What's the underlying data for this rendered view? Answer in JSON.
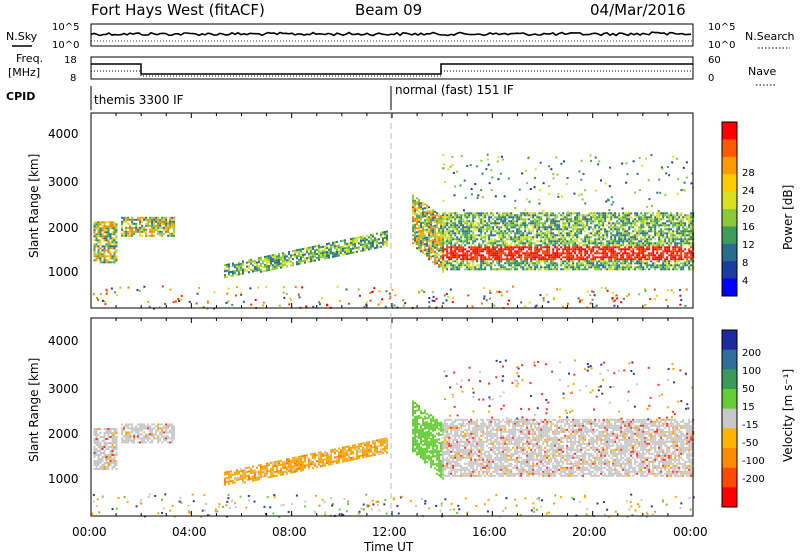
{
  "header": {
    "title": "Fort Hays West (fitACF)",
    "beam": "Beam 09",
    "date": "04/Mar/2016"
  },
  "noise_panel": {
    "left_label": "N.Sky",
    "left_ticks": [
      "10^5",
      "10^0"
    ],
    "right_label": "N.Search",
    "right_ticks": [
      "10^5",
      "10^0"
    ]
  },
  "freq_panel": {
    "left_label_line1": "Freq.",
    "left_label_line2": "[MHz]",
    "left_ticks": [
      "18",
      "8"
    ],
    "right_label": "Nave",
    "right_ticks": [
      "60",
      "0"
    ]
  },
  "cpid": {
    "label": "CPID",
    "segments": [
      {
        "text": "themis 3300 IF",
        "start_hour": 0
      },
      {
        "text": "normal (fast) 151 IF",
        "start_hour": 12
      }
    ]
  },
  "colorbars": {
    "power": {
      "title": "Power [dB]",
      "ticks": [
        "28",
        "24",
        "20",
        "16",
        "12",
        "8",
        "4"
      ],
      "colors": [
        "#ff0000",
        "#ff5a00",
        "#ff9a00",
        "#ffcc00",
        "#d8e020",
        "#8cc83c",
        "#3c9c5a",
        "#2a6c8c",
        "#1c3ca0",
        "#0000ff"
      ]
    },
    "velocity": {
      "title": "Velocity [m s⁻¹]",
      "ticks": [
        "200",
        "100",
        "50",
        "15",
        "-15",
        "-50",
        "-100",
        "-200"
      ],
      "colors": [
        "#1e2aa0",
        "#2e6e9c",
        "#3a9a5a",
        "#66cc33",
        "#c8c8c8",
        "#ffb400",
        "#ff8c00",
        "#ff4a00",
        "#ff0000"
      ]
    }
  },
  "chart_data": [
    {
      "type": "heatmap",
      "panel": "power",
      "ylabel": "Slant Range [km]",
      "yticks": [
        "4000",
        "3000",
        "2000",
        "1000"
      ],
      "ylim": [
        180,
        4500
      ],
      "xlim": [
        0,
        24
      ],
      "echo_regions": [
        {
          "x_start": 0.1,
          "x_end": 1.0,
          "range_low": 1200,
          "range_high": 2100
        },
        {
          "x_start": 1.2,
          "x_end": 3.3,
          "range_low": 1800,
          "range_high": 2200
        },
        {
          "x_start": 5.3,
          "x_end": 11.8,
          "range_low": 850,
          "range_high": 1900
        },
        {
          "x_start": 12.8,
          "x_end": 14.0,
          "range_low": 1000,
          "range_high": 2700
        },
        {
          "x_start": 14.0,
          "x_end": 24.0,
          "range_low": 1050,
          "range_high": 2300
        }
      ]
    },
    {
      "type": "heatmap",
      "panel": "velocity",
      "ylabel": "Slant Range [km]",
      "yticks": [
        "4000",
        "3000",
        "2000",
        "1000"
      ],
      "ylim": [
        180,
        4500
      ],
      "xlim": [
        0,
        24
      ],
      "xlabel": "Time UT",
      "xticks": [
        "00:00",
        "04:00",
        "08:00",
        "12:00",
        "16:00",
        "20:00",
        "00:00"
      ]
    }
  ]
}
